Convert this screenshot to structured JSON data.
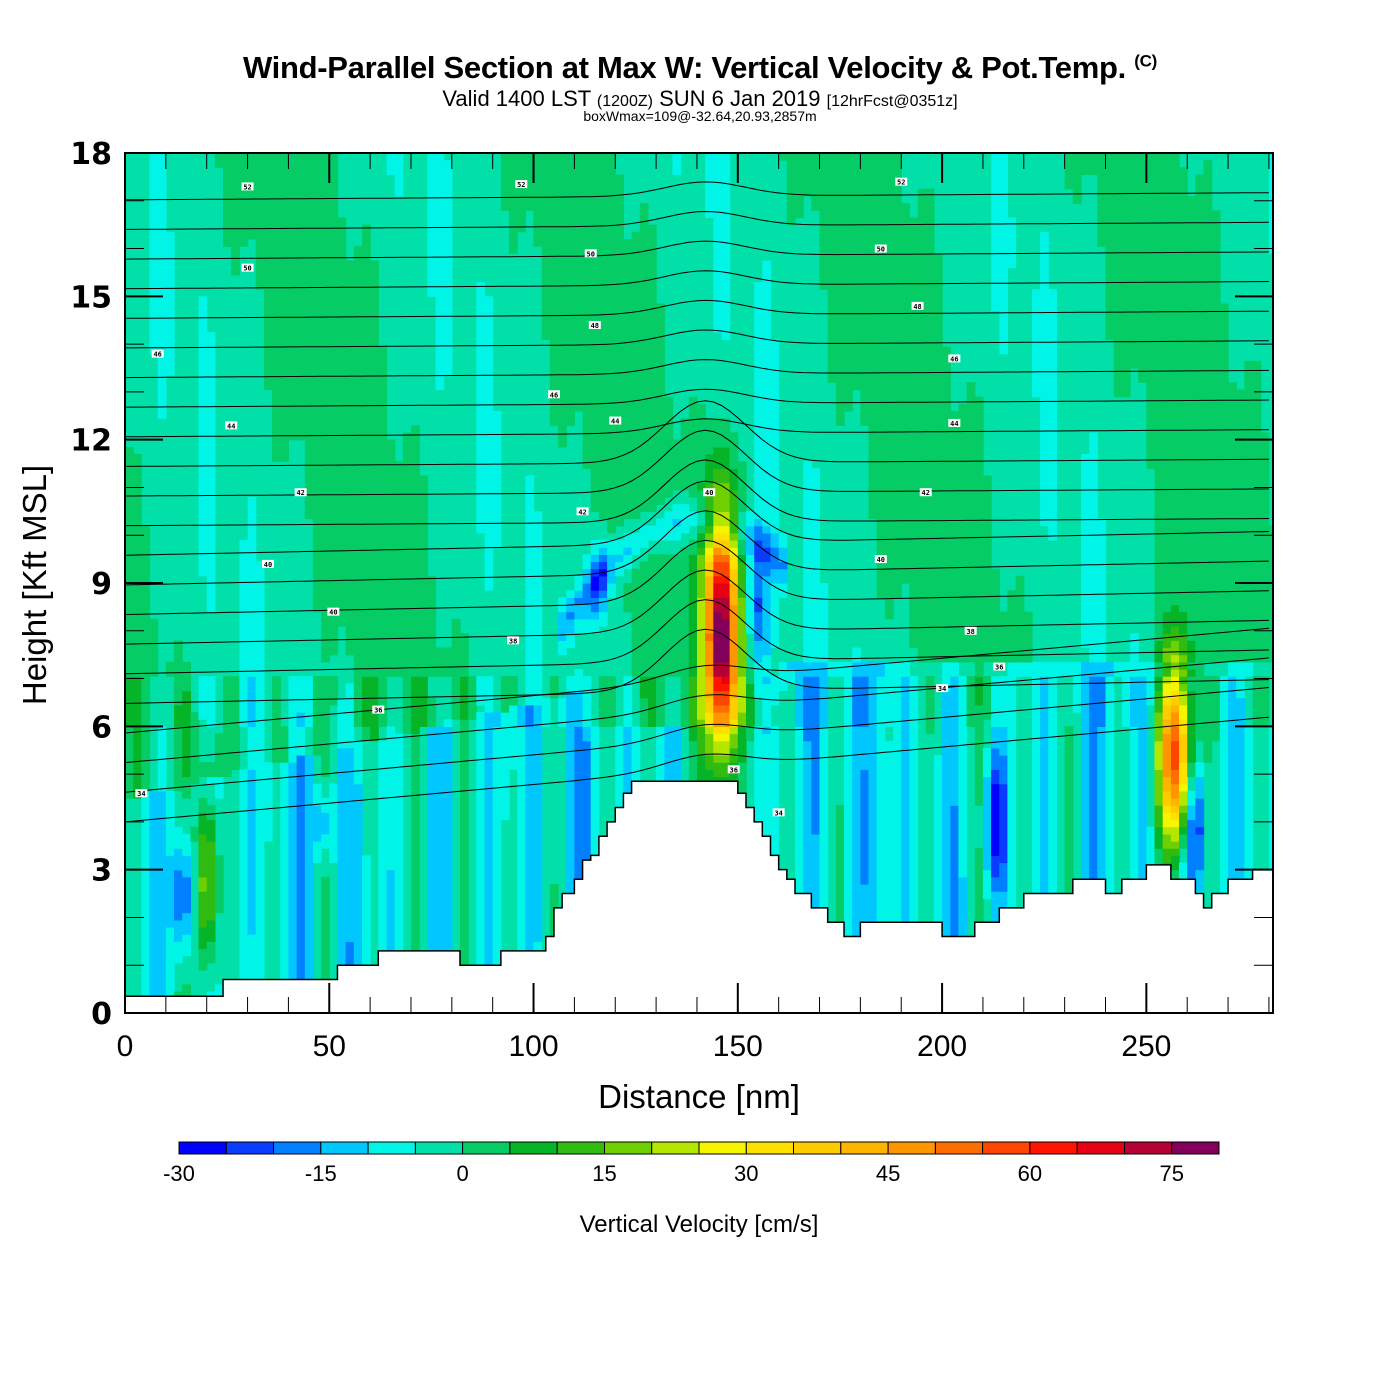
{
  "header": {
    "title": "Wind-Parallel Section at Max W: Vertical Velocity & Pot.Temp.",
    "copyright": "(C)",
    "valid_prefix": "Valid 1400 LST",
    "valid_utc": "(1200Z)",
    "valid_date": "SUN 6 Jan 2019",
    "forecast": "[12hrFcst@0351z]",
    "boxwmax": "boxWmax=109@-32.64,20.93,2857m"
  },
  "chart_data": {
    "type": "heatmap",
    "title": "Wind-Parallel Section at Max W: Vertical Velocity & Pot.Temp.",
    "xlabel": "Distance [nm]",
    "ylabel": "Height [Kft MSL]",
    "xlim": [
      0,
      281
    ],
    "ylim": [
      0,
      18
    ],
    "x_ticks": [
      0,
      50,
      100,
      150,
      200,
      250
    ],
    "y_ticks": [
      0,
      3,
      6,
      9,
      12,
      15,
      18
    ],
    "x_tick_labels": [
      "0",
      "50",
      "100",
      "150",
      "200",
      "250"
    ],
    "y_tick_labels": [
      "0",
      "3",
      "6",
      "9",
      "12",
      "15",
      "18"
    ],
    "colorbar": {
      "title": "Vertical Velocity [cm/s]",
      "levels": [
        -30,
        -25,
        -20,
        -15,
        -10,
        -5,
        0,
        5,
        10,
        15,
        20,
        25,
        30,
        35,
        40,
        45,
        50,
        55,
        60,
        65,
        70,
        75,
        80
      ],
      "tick_labels": [
        "-30",
        "-15",
        "0",
        "15",
        "30",
        "45",
        "60",
        "75"
      ],
      "tick_values": [
        -30,
        -15,
        0,
        15,
        30,
        45,
        60,
        75
      ],
      "colors": [
        "#0000ff",
        "#0a3cff",
        "#0080ff",
        "#00c8ff",
        "#00f5e6",
        "#00e0a8",
        "#06cc66",
        "#06b428",
        "#30bb10",
        "#6ed000",
        "#b4e600",
        "#f5f500",
        "#ffe100",
        "#ffcc00",
        "#ffb400",
        "#ff9600",
        "#ff6e00",
        "#ff4600",
        "#ff1400",
        "#e60014",
        "#b40032",
        "#82005a"
      ],
      "placement": "bottom"
    },
    "terrain_kft": {
      "x": [
        0,
        20,
        24,
        52,
        62,
        82,
        92,
        101,
        103,
        105,
        107,
        110,
        112,
        114,
        116,
        118,
        120,
        122,
        124,
        132,
        148,
        150,
        152,
        154,
        156,
        158,
        160,
        162,
        164,
        168,
        172,
        176,
        180,
        186,
        200,
        208,
        214,
        220,
        232,
        236,
        240,
        244,
        250,
        256,
        262,
        264,
        266,
        270,
        276,
        281
      ],
      "z": [
        0.35,
        0.35,
        0.7,
        1.0,
        1.3,
        1.0,
        1.3,
        1.3,
        1.6,
        2.2,
        2.5,
        2.8,
        3.2,
        3.3,
        3.7,
        4.0,
        4.3,
        4.6,
        4.85,
        4.85,
        4.85,
        4.6,
        4.3,
        4.0,
        3.7,
        3.3,
        3.0,
        2.8,
        2.5,
        2.2,
        1.9,
        1.6,
        1.9,
        1.9,
        1.6,
        1.9,
        2.2,
        2.5,
        2.8,
        2.8,
        2.5,
        2.8,
        3.1,
        2.8,
        2.5,
        2.2,
        2.5,
        2.8,
        3.0,
        3.0
      ]
    },
    "wmax_cm_s": 109,
    "features": [
      {
        "name": "updraft",
        "x_nm": 146,
        "z_kft": [
          5.0,
          10.8
        ],
        "peak_cm_s": 80
      },
      {
        "name": "downdraft",
        "x_nm": 155,
        "z_kft": [
          7.0,
          10.0
        ],
        "peak_cm_s": -20
      },
      {
        "name": "downdraft",
        "x_nm": 116,
        "z_kft": [
          8.0,
          10.0
        ],
        "peak_cm_s": -20
      },
      {
        "name": "updraft",
        "x_nm": 257,
        "z_kft": [
          3.2,
          7.6
        ],
        "peak_cm_s": 65
      },
      {
        "name": "updraft",
        "x_nm": 20,
        "z_kft": [
          0.5,
          5.0
        ],
        "peak_cm_s": 30
      },
      {
        "name": "downdraft",
        "x_nm": 14,
        "z_kft": [
          1.0,
          4.0
        ],
        "peak_cm_s": -25
      },
      {
        "name": "downdraft",
        "x_nm": 213,
        "z_kft": [
          2.5,
          5.5
        ],
        "peak_cm_s": -25
      },
      {
        "name": "downdraft",
        "x_nm": 262,
        "z_kft": [
          2.5,
          5.5
        ],
        "peak_cm_s": -25
      },
      {
        "name": "downdraft",
        "x_nm": 48,
        "z_kft": [
          3.3,
          4.7
        ],
        "peak_cm_s": -15
      }
    ],
    "theta_contours": {
      "label_values": [
        "34",
        "36",
        "38",
        "40",
        "42",
        "44",
        "46",
        "48",
        "50",
        "52"
      ],
      "labels": [
        {
          "text": "52",
          "x_nm": 30,
          "z_kft": 17.3
        },
        {
          "text": "52",
          "x_nm": 97,
          "z_kft": 17.35
        },
        {
          "text": "52",
          "x_nm": 190,
          "z_kft": 17.4
        },
        {
          "text": "50",
          "x_nm": 30,
          "z_kft": 15.6
        },
        {
          "text": "50",
          "x_nm": 114,
          "z_kft": 15.9
        },
        {
          "text": "50",
          "x_nm": 185,
          "z_kft": 16.0
        },
        {
          "text": "48",
          "x_nm": 115,
          "z_kft": 14.4
        },
        {
          "text": "48",
          "x_nm": 194,
          "z_kft": 14.8
        },
        {
          "text": "46",
          "x_nm": 8,
          "z_kft": 13.8
        },
        {
          "text": "46",
          "x_nm": 105,
          "z_kft": 12.95
        },
        {
          "text": "46",
          "x_nm": 203,
          "z_kft": 13.7
        },
        {
          "text": "44",
          "x_nm": 26,
          "z_kft": 12.3
        },
        {
          "text": "44",
          "x_nm": 120,
          "z_kft": 12.4
        },
        {
          "text": "44",
          "x_nm": 203,
          "z_kft": 12.35
        },
        {
          "text": "42",
          "x_nm": 43,
          "z_kft": 10.9
        },
        {
          "text": "42",
          "x_nm": 112,
          "z_kft": 10.5
        },
        {
          "text": "42",
          "x_nm": 196,
          "z_kft": 10.9
        },
        {
          "text": "40",
          "x_nm": 35,
          "z_kft": 9.4
        },
        {
          "text": "40",
          "x_nm": 51,
          "z_kft": 8.4
        },
        {
          "text": "40",
          "x_nm": 143,
          "z_kft": 10.9
        },
        {
          "text": "40",
          "x_nm": 185,
          "z_kft": 9.5
        },
        {
          "text": "38",
          "x_nm": 95,
          "z_kft": 7.8
        },
        {
          "text": "38",
          "x_nm": 207,
          "z_kft": 8.0
        },
        {
          "text": "36",
          "x_nm": 62,
          "z_kft": 6.35
        },
        {
          "text": "36",
          "x_nm": 149,
          "z_kft": 5.1
        },
        {
          "text": "36",
          "x_nm": 214,
          "z_kft": 7.25
        },
        {
          "text": "34",
          "x_nm": 4,
          "z_kft": 4.6
        },
        {
          "text": "34",
          "x_nm": 200,
          "z_kft": 6.8
        },
        {
          "text": "34",
          "x_nm": 160,
          "z_kft": 4.2
        }
      ]
    }
  }
}
